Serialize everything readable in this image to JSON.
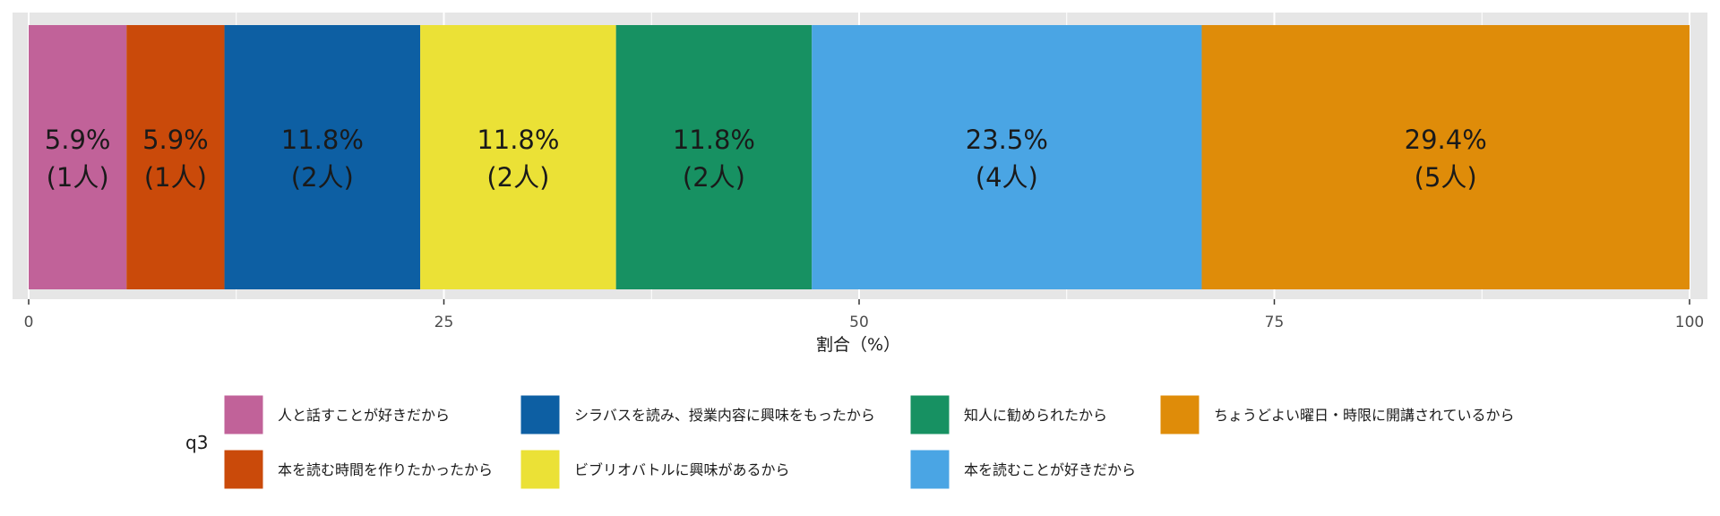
{
  "chart_data": {
    "type": "bar",
    "orientation": "horizontal-stacked",
    "categories": [
      "q3"
    ],
    "xlabel": "割合（%）",
    "xlim": [
      0,
      100
    ],
    "x_ticks": [
      "0",
      "25",
      "50",
      "75",
      "100"
    ],
    "grid": true,
    "legend_title": "q3",
    "legend_position": "bottom",
    "series": [
      {
        "name": "人と話すことが好きだから",
        "value": 5.9,
        "label_pct": "5.9%",
        "label_count": "(1人)",
        "color": "#C16299"
      },
      {
        "name": "本を読む時間を作りたかったから",
        "value": 5.9,
        "label_pct": "5.9%",
        "label_count": "(1人)",
        "color": "#CA4A0A"
      },
      {
        "name": "シラバスを読み、授業内容に興味をもったから",
        "value": 11.8,
        "label_pct": "11.8%",
        "label_count": "(2人)",
        "color": "#0D5FA3"
      },
      {
        "name": "ビブリオバトルに興味があるから",
        "value": 11.8,
        "label_pct": "11.8%",
        "label_count": "(2人)",
        "color": "#EBE136"
      },
      {
        "name": "知人に勧められたから",
        "value": 11.8,
        "label_pct": "11.8%",
        "label_count": "(2人)",
        "color": "#179162"
      },
      {
        "name": "本を読むことが好きだから",
        "value": 23.5,
        "label_pct": "23.5%",
        "label_count": "(4人)",
        "color": "#4AA5E4"
      },
      {
        "name": "ちょうどよい曜日・時限に開講されているから",
        "value": 29.4,
        "label_pct": "29.4%",
        "label_count": "(5人)",
        "color": "#DF8C09"
      }
    ]
  },
  "colors": {
    "panel_background": "#E6E6E6",
    "grid_line": "#FFFFFF",
    "axis_text": "#4D4D4D"
  }
}
